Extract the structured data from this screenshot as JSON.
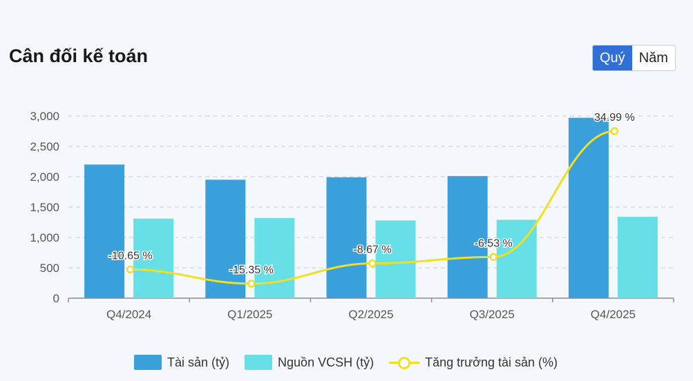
{
  "header": {
    "title": "Cân đối kế toán",
    "toggle": [
      {
        "label": "Quý",
        "active": true
      },
      {
        "label": "Năm",
        "active": false
      }
    ]
  },
  "chart_data": {
    "type": "bar",
    "categories": [
      "Q4/2024",
      "Q1/2025",
      "Q2/2025",
      "Q3/2025",
      "Q4/2025"
    ],
    "ylim": [
      0,
      3000
    ],
    "yticks": [
      0,
      500,
      1000,
      1500,
      2000,
      2500,
      3000
    ],
    "ytick_labels": [
      "0",
      "500",
      "1,000",
      "1,500",
      "2,000",
      "2,500",
      "3,000"
    ],
    "grid": true,
    "legend_position": "bottom",
    "series": [
      {
        "name": "Tài sản (tỷ)",
        "type": "bar",
        "color": "#3aa0db",
        "values": [
          2200,
          1950,
          1990,
          2010,
          2970
        ]
      },
      {
        "name": "Nguồn VCSH (tỷ)",
        "type": "bar",
        "color": "#66e0e6",
        "values": [
          1310,
          1320,
          1280,
          1290,
          1340
        ]
      },
      {
        "name": "Tăng trưởng tài sản (%)",
        "type": "line",
        "color": "#f0e020",
        "values": [
          -10.65,
          -15.35,
          -8.67,
          -6.53,
          34.99
        ],
        "labels": [
          "-10.65 %",
          "-15.35 %",
          "-8.67 %",
          "-6.53 %",
          "34.99 %"
        ]
      }
    ]
  }
}
